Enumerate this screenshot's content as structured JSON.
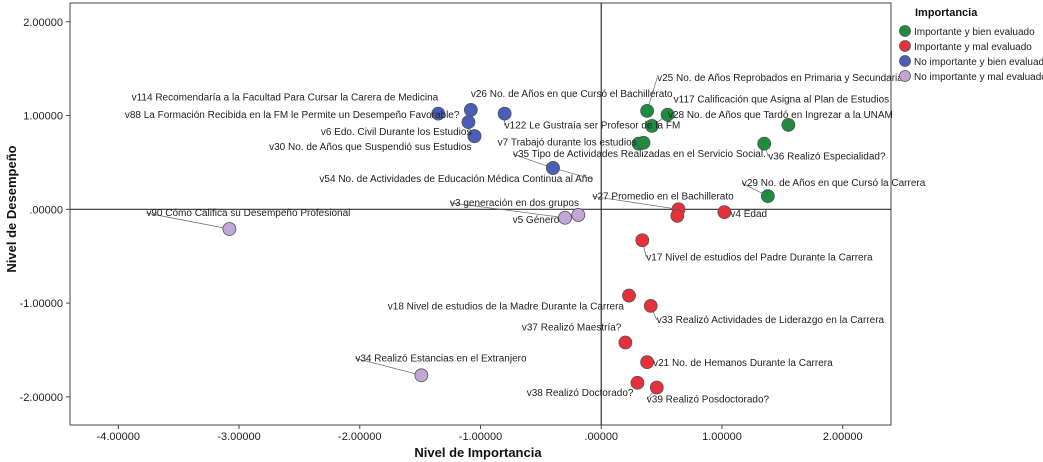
{
  "chart_data": {
    "type": "scatter",
    "xlabel": "Nivel de Importancia",
    "ylabel": "Nivel de Desempeño",
    "xlim": [
      -4.4,
      2.4
    ],
    "ylim": [
      -2.3,
      2.2
    ],
    "xticks": [
      -4,
      -3,
      -2,
      -1,
      0,
      1,
      2
    ],
    "xtick_labels": [
      "-4.00000",
      "-3.00000",
      "-2.00000",
      "-1.00000",
      ".00000",
      "1.00000",
      "2.00000"
    ],
    "yticks": [
      2,
      1,
      0,
      -1,
      -2
    ],
    "ytick_labels": [
      "2.00000",
      "1.00000",
      ".00000",
      "-1.00000",
      "-2.00000"
    ],
    "legend": {
      "title": "Importancia",
      "placement": "top-right",
      "entries": [
        {
          "name": "Importante y bien evaluado",
          "color": "#1e8c3c"
        },
        {
          "name": "Importante y mal evaluado",
          "color": "#e8303a"
        },
        {
          "name": "No importante y bien evaluado",
          "color": "#4a5db8"
        },
        {
          "name": "No importante y mal evaluado",
          "color": "#c4a6d6"
        }
      ]
    },
    "series": [
      {
        "name": "Importante y bien evaluado",
        "color": "#1e8c3c",
        "points": [
          {
            "x": 0.38,
            "y": 1.05,
            "label": "v25 No. de Años Reprobados en Primaria y Secundaria",
            "anchor": "start",
            "dx": 10,
            "dy": -30
          },
          {
            "x": 0.55,
            "y": 1.01,
            "label": "v117 Calificación que Asigna al Plan de Estudios",
            "anchor": "start",
            "dx": 6,
            "dy": -12
          },
          {
            "x": 0.42,
            "y": 0.89,
            "label": "v28 No. de Años que Tardó en Ingrezar a la UNAM",
            "anchor": "start",
            "dx": 16,
            "dy": -8
          },
          {
            "x": 0.31,
            "y": 0.7,
            "label": "v7 Trabajó durante los estudios",
            "anchor": "end",
            "dx": -2,
            "dy": 2
          },
          {
            "x": 0.35,
            "y": 0.71,
            "label": "",
            "anchor": "start",
            "dx": 0,
            "dy": 0
          },
          {
            "x": 1.55,
            "y": 0.9,
            "label": "",
            "anchor": "start",
            "dx": 0,
            "dy": 0
          },
          {
            "x": 1.35,
            "y": 0.7,
            "label": "v36 Realizó Especialidad?",
            "anchor": "start",
            "dx": 4,
            "dy": 16
          },
          {
            "x": 1.38,
            "y": 0.14,
            "label": "v29 No. de Años en que Cursó la Carrera",
            "anchor": "start",
            "dx": -26,
            "dy": -10
          }
        ]
      },
      {
        "name": "Importante y mal evaluado",
        "color": "#e8303a",
        "points": [
          {
            "x": 0.64,
            "y": 0.0,
            "label": "v27 Promedio en el Bachillerato",
            "anchor": "start",
            "dx": -86,
            "dy": -10
          },
          {
            "x": 0.63,
            "y": -0.07,
            "label": "",
            "anchor": "start",
            "dx": 0,
            "dy": 0
          },
          {
            "x": 1.02,
            "y": -0.03,
            "label": "v4 Edad",
            "anchor": "start",
            "dx": 6,
            "dy": 5
          },
          {
            "x": 0.34,
            "y": -0.33,
            "label": "v17 Nivel de estudios del Padre Durante la Carrera",
            "anchor": "start",
            "dx": 4,
            "dy": 20
          },
          {
            "x": 0.23,
            "y": -0.92,
            "label": "v18 Nivel de estudios de la Madre Durante la Carrera",
            "anchor": "end",
            "dx": -5,
            "dy": 14
          },
          {
            "x": 0.41,
            "y": -1.03,
            "label": "v33 Realizó Actividades de Liderazgo en la Carrera",
            "anchor": "start",
            "dx": 6,
            "dy": 17
          },
          {
            "x": 0.2,
            "y": -1.42,
            "label": "v37 Realizó Maestría?",
            "anchor": "end",
            "dx": -4,
            "dy": -12
          },
          {
            "x": 0.38,
            "y": -1.63,
            "label": "v21 No. de Hemanos Durante la Carrera",
            "anchor": "start",
            "dx": 6,
            "dy": 4
          },
          {
            "x": 0.3,
            "y": -1.85,
            "label": "v38 Realizó Doctorado?",
            "anchor": "end",
            "dx": -4,
            "dy": 13
          },
          {
            "x": 0.46,
            "y": -1.9,
            "label": "v39 Realizó Posdoctorado?",
            "anchor": "start",
            "dx": -10,
            "dy": 15
          }
        ]
      },
      {
        "name": "No importante y bien evaluado",
        "color": "#4a5db8",
        "points": [
          {
            "x": -1.35,
            "y": 1.02,
            "label": "v114 Recomendaría a la Facultad Para Cursar la Carera de Medicina",
            "anchor": "end",
            "dx": 0,
            "dy": -13
          },
          {
            "x": -1.08,
            "y": 1.06,
            "label": "v26 No. de Años en que Cursó el Bachillerato",
            "anchor": "start",
            "dx": 0,
            "dy": -13
          },
          {
            "x": -1.1,
            "y": 0.93,
            "label": "v88 La Formación Recibida en la FM le Permite un Desempeño Favorable?",
            "anchor": "end",
            "dx": -9,
            "dy": -4
          },
          {
            "x": -0.8,
            "y": 1.02,
            "label": "v122 Le Gustraía ser Profesor de la FM",
            "anchor": "start",
            "dx": 0,
            "dy": 15
          },
          {
            "x": -1.05,
            "y": 0.78,
            "label": "v6 Edo. Civil Durante los Estudios",
            "anchor": "end",
            "dx": -3,
            "dy": -1
          },
          {
            "x": -1.05,
            "y": 0.78,
            "label": "v30 No. de Años que Suspendió sus Estudios",
            "anchor": "end",
            "dx": -3,
            "dy": 14
          },
          {
            "x": -0.4,
            "y": 0.44,
            "label": "v35 Tipo de Actividades Realizadas en el Servicio Social.",
            "anchor": "start",
            "dx": -40,
            "dy": -11
          },
          {
            "x": -0.4,
            "y": 0.44,
            "label": "v54 No. de Actividades de Educación Médica Continua al Año",
            "anchor": "end",
            "dx": 40,
            "dy": 14
          }
        ]
      },
      {
        "name": "No importante y mal evaluado",
        "color": "#c4a6d6",
        "points": [
          {
            "x": -3.08,
            "y": -0.21,
            "label": "v90 Cómo Califica su Desempeño Profesional",
            "anchor": "start",
            "dx": -83,
            "dy": -13
          },
          {
            "x": -0.3,
            "y": -0.09,
            "label": "v3 generación en dos grupos",
            "anchor": "start",
            "dx": -115,
            "dy": -12
          },
          {
            "x": -0.19,
            "y": -0.06,
            "label": "v5 Género",
            "anchor": "end",
            "dx": -19,
            "dy": 8
          },
          {
            "x": -1.49,
            "y": -1.77,
            "label": "v34 Realizó Estancias en el Extranjero",
            "anchor": "start",
            "dx": -66,
            "dy": -14
          }
        ]
      }
    ]
  }
}
